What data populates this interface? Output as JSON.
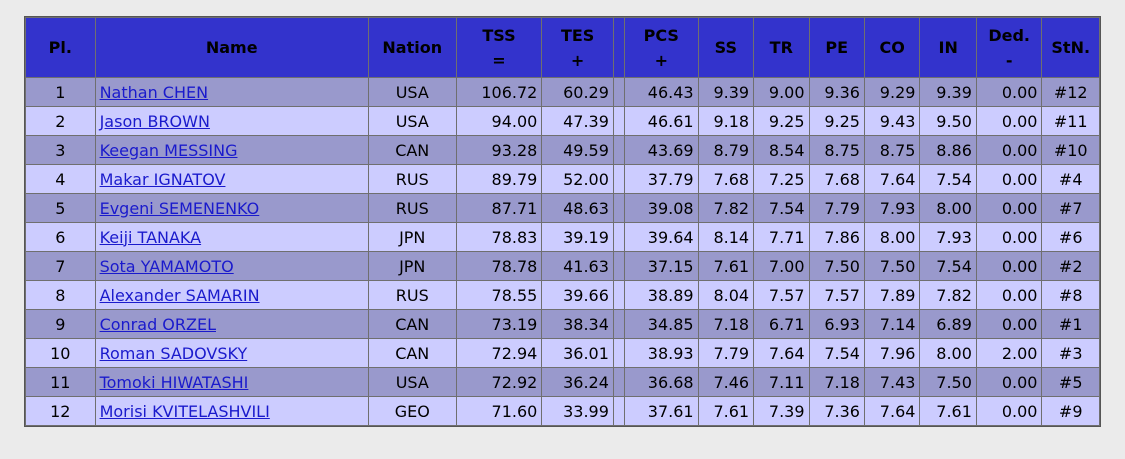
{
  "headers": {
    "pl": "Pl.",
    "name": "Name",
    "nation": "Nation",
    "tss_1": "TSS",
    "tss_2": "=",
    "tes_1": "TES",
    "tes_2": "+",
    "pcs_1": "PCS",
    "pcs_2": "+",
    "ss": "SS",
    "tr": "TR",
    "pe": "PE",
    "co": "CO",
    "in": "IN",
    "ded_1": "Ded.",
    "ded_2": "-",
    "stn": "StN."
  },
  "colors": {
    "header_bg": "#3333cc",
    "row_odd": "#9999cc",
    "row_even": "#ccccff",
    "link": "#1a1acc"
  },
  "rows": [
    {
      "pl": "1",
      "name": "Nathan CHEN",
      "nation": "USA",
      "tss": "106.72",
      "tes": "60.29",
      "pcs": "46.43",
      "ss": "9.39",
      "tr": "9.00",
      "pe": "9.36",
      "co": "9.29",
      "in": "9.39",
      "ded": "0.00",
      "stn": "#12"
    },
    {
      "pl": "2",
      "name": "Jason BROWN",
      "nation": "USA",
      "tss": "94.00",
      "tes": "47.39",
      "pcs": "46.61",
      "ss": "9.18",
      "tr": "9.25",
      "pe": "9.25",
      "co": "9.43",
      "in": "9.50",
      "ded": "0.00",
      "stn": "#11"
    },
    {
      "pl": "3",
      "name": "Keegan MESSING",
      "nation": "CAN",
      "tss": "93.28",
      "tes": "49.59",
      "pcs": "43.69",
      "ss": "8.79",
      "tr": "8.54",
      "pe": "8.75",
      "co": "8.75",
      "in": "8.86",
      "ded": "0.00",
      "stn": "#10"
    },
    {
      "pl": "4",
      "name": "Makar IGNATOV",
      "nation": "RUS",
      "tss": "89.79",
      "tes": "52.00",
      "pcs": "37.79",
      "ss": "7.68",
      "tr": "7.25",
      "pe": "7.68",
      "co": "7.64",
      "in": "7.54",
      "ded": "0.00",
      "stn": "#4"
    },
    {
      "pl": "5",
      "name": "Evgeni SEMENENKO",
      "nation": "RUS",
      "tss": "87.71",
      "tes": "48.63",
      "pcs": "39.08",
      "ss": "7.82",
      "tr": "7.54",
      "pe": "7.79",
      "co": "7.93",
      "in": "8.00",
      "ded": "0.00",
      "stn": "#7"
    },
    {
      "pl": "6",
      "name": "Keiji TANAKA",
      "nation": "JPN",
      "tss": "78.83",
      "tes": "39.19",
      "pcs": "39.64",
      "ss": "8.14",
      "tr": "7.71",
      "pe": "7.86",
      "co": "8.00",
      "in": "7.93",
      "ded": "0.00",
      "stn": "#6"
    },
    {
      "pl": "7",
      "name": "Sota YAMAMOTO",
      "nation": "JPN",
      "tss": "78.78",
      "tes": "41.63",
      "pcs": "37.15",
      "ss": "7.61",
      "tr": "7.00",
      "pe": "7.50",
      "co": "7.50",
      "in": "7.54",
      "ded": "0.00",
      "stn": "#2"
    },
    {
      "pl": "8",
      "name": "Alexander SAMARIN",
      "nation": "RUS",
      "tss": "78.55",
      "tes": "39.66",
      "pcs": "38.89",
      "ss": "8.04",
      "tr": "7.57",
      "pe": "7.57",
      "co": "7.89",
      "in": "7.82",
      "ded": "0.00",
      "stn": "#8"
    },
    {
      "pl": "9",
      "name": "Conrad ORZEL",
      "nation": "CAN",
      "tss": "73.19",
      "tes": "38.34",
      "pcs": "34.85",
      "ss": "7.18",
      "tr": "6.71",
      "pe": "6.93",
      "co": "7.14",
      "in": "6.89",
      "ded": "0.00",
      "stn": "#1"
    },
    {
      "pl": "10",
      "name": "Roman SADOVSKY",
      "nation": "CAN",
      "tss": "72.94",
      "tes": "36.01",
      "pcs": "38.93",
      "ss": "7.79",
      "tr": "7.64",
      "pe": "7.54",
      "co": "7.96",
      "in": "8.00",
      "ded": "2.00",
      "stn": "#3"
    },
    {
      "pl": "11",
      "name": "Tomoki HIWATASHI",
      "nation": "USA",
      "tss": "72.92",
      "tes": "36.24",
      "pcs": "36.68",
      "ss": "7.46",
      "tr": "7.11",
      "pe": "7.18",
      "co": "7.43",
      "in": "7.50",
      "ded": "0.00",
      "stn": "#5"
    },
    {
      "pl": "12",
      "name": "Morisi KVITELASHVILI",
      "nation": "GEO",
      "tss": "71.60",
      "tes": "33.99",
      "pcs": "37.61",
      "ss": "7.61",
      "tr": "7.39",
      "pe": "7.36",
      "co": "7.64",
      "in": "7.61",
      "ded": "0.00",
      "stn": "#9"
    }
  ]
}
